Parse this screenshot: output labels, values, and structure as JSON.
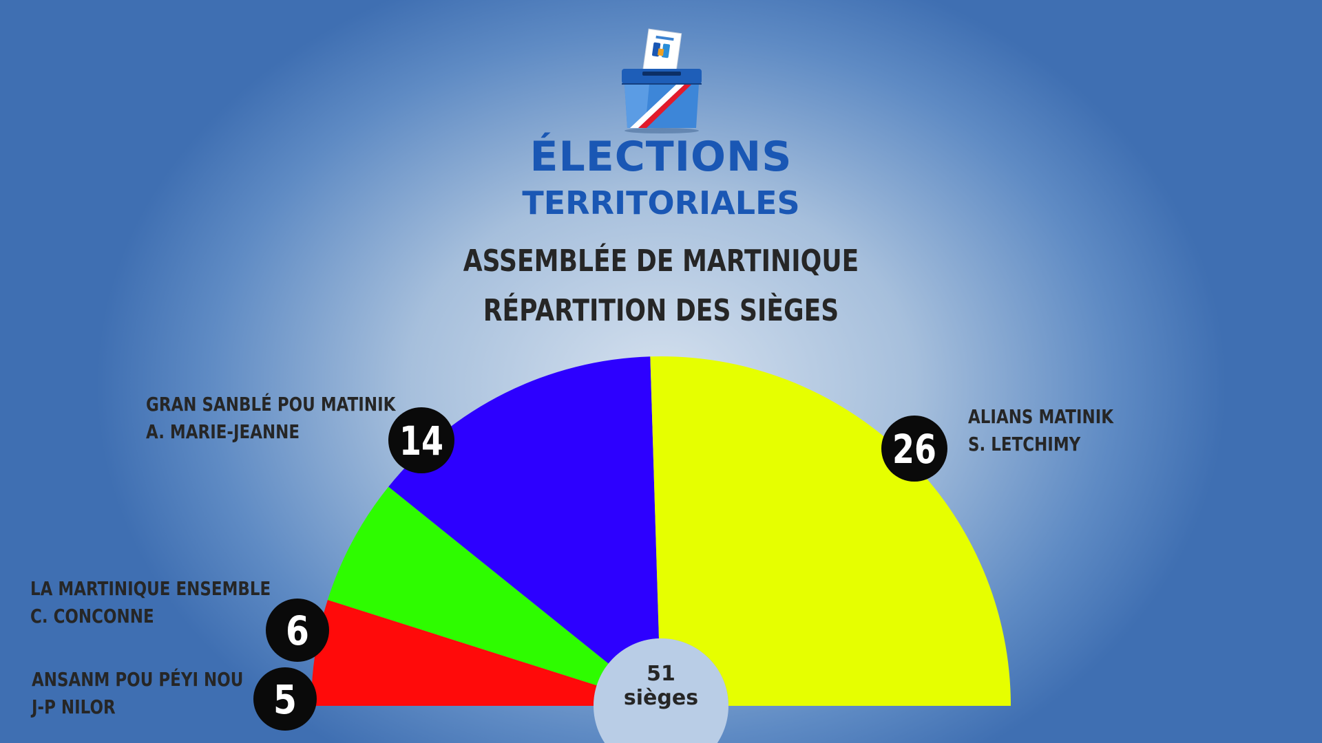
{
  "header": {
    "line1": "ÉLECTIONS",
    "line2": "TERRITORIALES"
  },
  "title": {
    "line1": "ASSEMBLÉE DE MARTINIQUE",
    "line2": "RÉPARTITION DES SIÈGES"
  },
  "total": {
    "number": "51",
    "label": "sièges"
  },
  "chart_data": {
    "type": "pie",
    "subtype": "half-donut parliament chart",
    "title": "ASSEMBLÉE DE MARTINIQUE - RÉPARTITION DES SIÈGES",
    "total_seats": 51,
    "series": [
      {
        "name": "ANSANM POU PÉYI NOU",
        "leader": "J-P NILOR",
        "value": 5,
        "label": "5",
        "color": "#ff0a0a"
      },
      {
        "name": "LA MARTINIQUE ENSEMBLE",
        "leader": "C. CONCONNE",
        "value": 6,
        "label": "6",
        "color": "#2efc00"
      },
      {
        "name": "GRAN SANBLÉ POU MATINIK",
        "leader": "A. MARIE-JEANNE",
        "value": 14,
        "label": "14",
        "color": "#2d00ff"
      },
      {
        "name": "ALIANS MATINIK",
        "leader": "S. LETCHIMY",
        "value": 26,
        "label": "26",
        "color": "#e6ff00"
      }
    ]
  }
}
